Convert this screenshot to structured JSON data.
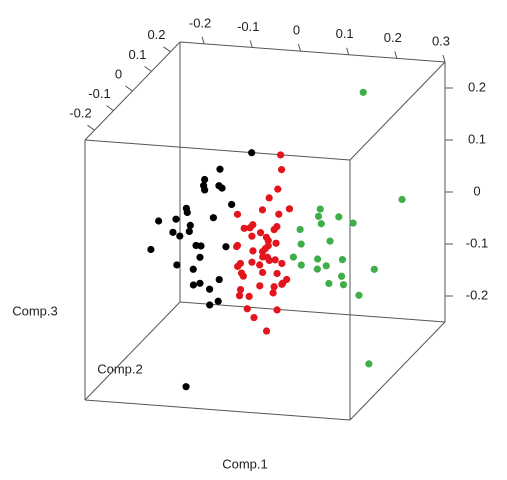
{
  "chart_data": {
    "type": "scatter3d",
    "xlabel": "Comp.1",
    "ylabel": "Comp.2",
    "zlabel": "Comp.3",
    "xlim": [
      -0.25,
      0.3
    ],
    "ylim": [
      -0.25,
      0.25
    ],
    "zlim": [
      -0.25,
      0.25
    ],
    "xticks": [
      -0.2,
      -0.1,
      0,
      0.1,
      0.2,
      0.3
    ],
    "yticks": [
      -0.2,
      -0.1,
      0,
      0.1,
      0.2
    ],
    "zticks": [
      -0.2,
      -0.1,
      0,
      0.1,
      0.2
    ],
    "series": [
      {
        "color": "#000000",
        "x": [
          -0.13,
          -0.15,
          -0.1,
          -0.12,
          -0.17,
          -0.2,
          -0.08,
          -0.11,
          -0.14,
          -0.09,
          -0.16,
          -0.12,
          -0.07,
          -0.1,
          -0.13,
          -0.18,
          -0.06,
          -0.11,
          -0.15,
          -0.09,
          -0.12,
          -0.05,
          -0.14,
          -0.08,
          -0.1,
          -0.13,
          -0.06,
          -0.11,
          -0.07,
          -0.14,
          -0.06
        ],
        "y": [
          0.0,
          0.03,
          -0.02,
          0.05,
          0.01,
          -0.03,
          0.04,
          0.0,
          -0.05,
          0.02,
          0.06,
          -0.01,
          0.0,
          0.08,
          0.03,
          -0.04,
          0.01,
          0.1,
          -0.02,
          0.0,
          0.05,
          0.12,
          -0.03,
          0.02,
          -0.06,
          0.07,
          0.04,
          0.0,
          -0.05,
          0.02,
          -0.2
        ],
        "z": [
          0.0,
          0.02,
          -0.03,
          0.05,
          -0.02,
          -0.04,
          0.06,
          -0.06,
          0.03,
          0.01,
          0.0,
          -0.08,
          -0.1,
          0.08,
          -0.05,
          0.02,
          -0.04,
          0.04,
          -0.07,
          -0.12,
          0.07,
          0.1,
          -0.01,
          -0.15,
          -0.09,
          0.05,
          0.03,
          -0.11,
          -0.13,
          -0.02,
          -0.23
        ]
      },
      {
        "color": "#e3141c",
        "x": [
          0.0,
          0.02,
          -0.02,
          0.04,
          0.01,
          -0.03,
          0.05,
          0.03,
          -0.01,
          0.02,
          0.06,
          -0.04,
          0.0,
          0.03,
          0.01,
          -0.02,
          0.04,
          0.05,
          0.02,
          -0.01,
          0.0,
          0.03,
          0.06,
          -0.03,
          0.01,
          0.04,
          -0.02,
          0.02,
          0.07,
          0.0,
          0.03,
          -0.01,
          0.05,
          0.01,
          0.02,
          -0.04,
          0.04,
          0.0,
          0.06,
          0.03,
          -0.02,
          0.01,
          0.02,
          0.05,
          -0.01,
          0.03,
          0.0,
          0.04,
          0.02,
          -0.03
        ],
        "y": [
          0.0,
          0.02,
          -0.03,
          0.01,
          0.04,
          -0.01,
          0.0,
          0.05,
          -0.04,
          0.03,
          0.0,
          0.02,
          -0.02,
          0.06,
          0.01,
          0.0,
          -0.05,
          0.03,
          0.08,
          0.02,
          -0.03,
          0.0,
          0.04,
          0.01,
          -0.02,
          0.02,
          0.05,
          0.1,
          0.0,
          -0.06,
          0.03,
          0.01,
          -0.01,
          0.12,
          0.0,
          0.02,
          -0.03,
          0.04,
          0.0,
          0.01,
          -0.02,
          0.06,
          0.03,
          0.0,
          0.02,
          -0.04,
          0.05,
          0.01,
          0.0,
          0.03
        ],
        "z": [
          -0.04,
          -0.02,
          -0.06,
          0.0,
          -0.05,
          -0.03,
          -0.08,
          -0.01,
          -0.1,
          -0.04,
          -0.06,
          0.02,
          -0.12,
          0.01,
          -0.07,
          -0.09,
          -0.03,
          -0.11,
          0.05,
          -0.02,
          -0.14,
          -0.05,
          0.03,
          -0.07,
          -0.16,
          -0.03,
          -0.01,
          0.08,
          -0.09,
          -0.06,
          -0.13,
          0.0,
          -0.05,
          0.1,
          -0.08,
          -0.04,
          -0.18,
          -0.02,
          -0.1,
          -0.06,
          -0.12,
          0.04,
          -0.03,
          -0.15,
          -0.07,
          -0.09,
          0.02,
          -0.11,
          -0.04,
          -0.01
        ]
      },
      {
        "color": "#3fae49",
        "x": [
          0.1,
          0.13,
          0.16,
          0.12,
          0.18,
          0.15,
          0.2,
          0.11,
          0.14,
          0.17,
          0.22,
          0.09,
          0.19,
          0.13,
          0.16,
          0.24,
          0.12,
          0.18,
          0.27,
          0.08,
          0.15,
          0.28
        ],
        "y": [
          0.0,
          0.03,
          -0.02,
          0.05,
          0.01,
          -0.04,
          0.02,
          0.06,
          -0.01,
          0.04,
          0.0,
          0.02,
          -0.03,
          0.07,
          0.0,
          0.03,
          -0.05,
          0.02,
          0.1,
          0.01,
          0.2,
          -0.1
        ],
        "z": [
          -0.02,
          0.01,
          -0.05,
          0.03,
          -0.08,
          -0.03,
          0.02,
          -0.09,
          0.04,
          -0.06,
          -0.11,
          0.0,
          0.05,
          -0.12,
          -0.01,
          -0.07,
          -0.04,
          -0.1,
          0.04,
          -0.05,
          0.2,
          -0.2
        ]
      }
    ]
  }
}
